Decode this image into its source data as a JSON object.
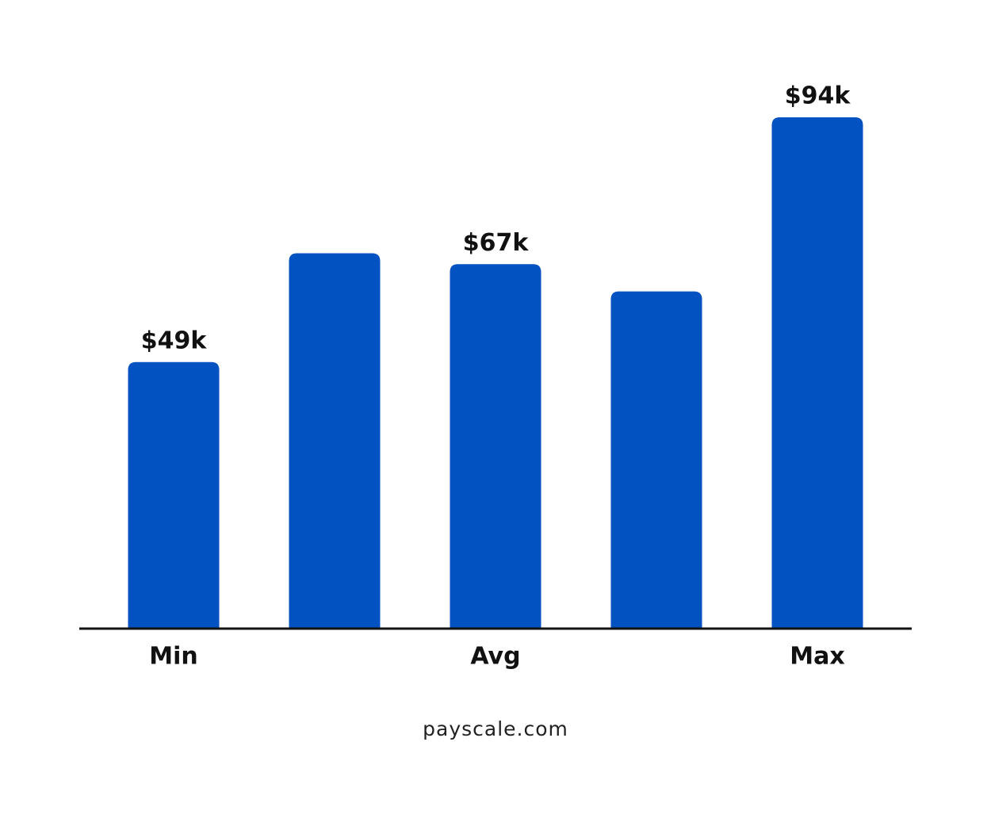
{
  "chart_data": {
    "type": "bar",
    "categories": [
      "Min",
      null,
      "Avg",
      null,
      "Max"
    ],
    "values": [
      49000,
      69000,
      67000,
      62000,
      94000
    ],
    "value_labels": [
      "$49k",
      null,
      "$67k",
      null,
      "$94k"
    ],
    "color": "#0352c1",
    "source": "payscale.com"
  }
}
